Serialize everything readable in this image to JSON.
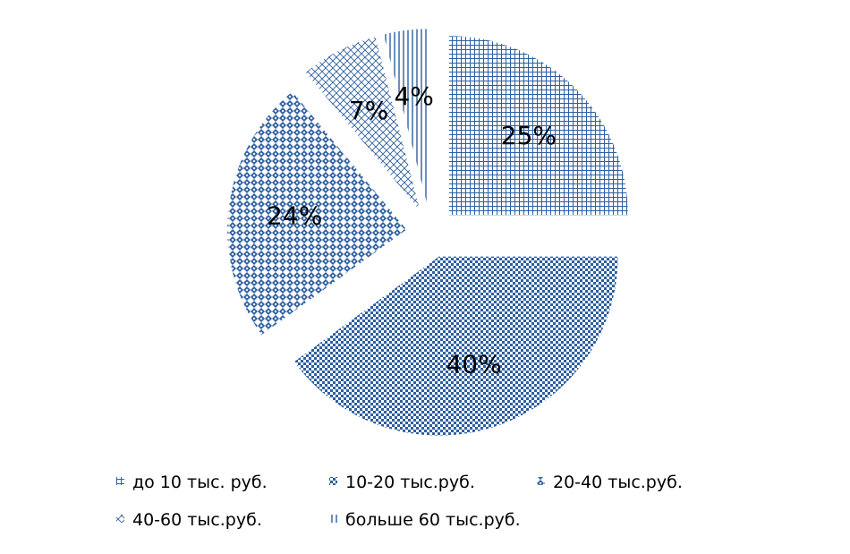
{
  "chart_data": {
    "type": "pie",
    "exploded": true,
    "legend_position": "bottom",
    "categories": [
      "до 10 тыс. руб.",
      "10-20 тыс.руб.",
      "20-40 тыс.руб.",
      "40-60 тыс.руб.",
      "больше 60 тыс.руб."
    ],
    "values": [
      25,
      40,
      24,
      7,
      4
    ],
    "data_labels": [
      "25%",
      "40%",
      "24%",
      "7%",
      "4%"
    ],
    "series_color": "#2e5fa0",
    "patterns": [
      "grid",
      "checker",
      "diamond",
      "weave",
      "vertical-lines"
    ]
  }
}
